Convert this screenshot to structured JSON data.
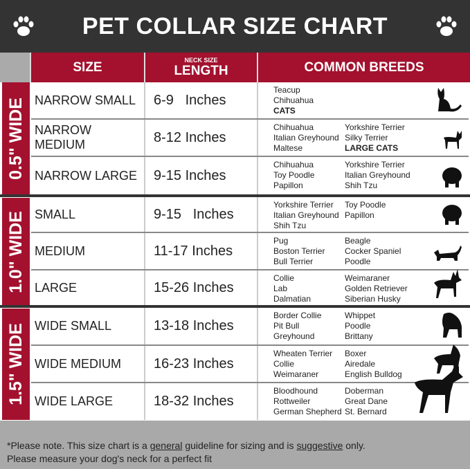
{
  "title": "PET COLLAR SIZE CHART",
  "colors": {
    "red": "#a3112e",
    "dark": "#333333",
    "footer": "#a9a9a9"
  },
  "headers": {
    "size": "SIZE",
    "neck_small": "NECK SIZE",
    "length": "LENGTH",
    "breeds": "COMMON BREEDS"
  },
  "groups": [
    "0.5\" WIDE",
    "1.0\" WIDE",
    "1.5\" WIDE"
  ],
  "rows": [
    {
      "size": "NARROW SMALL",
      "length": "6-9   Inches",
      "col1": [
        "Teacup",
        "Chihuahua"
      ],
      "col1_bold": "CATS",
      "col2": [],
      "col2_bold": "",
      "icon": "cat-icon"
    },
    {
      "size": "NARROW MEDIUM",
      "length": "8-12 Inches",
      "col1": [
        "Chihuahua",
        "Italian Greyhound",
        "Maltese"
      ],
      "col2": [
        "Yorkshire Terrier",
        "Silky Terrier"
      ],
      "col2_bold": "LARGE CATS",
      "icon": "chihuahua-icon"
    },
    {
      "size": "NARROW LARGE",
      "length": "9-15 Inches",
      "col1": [
        "Chihuahua",
        "Toy Poodle",
        "Papillon"
      ],
      "col2": [
        "Yorkshire Terrier",
        "Italian Greyhound",
        "Shih Tzu"
      ],
      "icon": "fluffy-dog-icon"
    },
    {
      "size": "SMALL",
      "length": "9-15   Inches",
      "col1": [
        "Yorkshire Terrier",
        "Italian Greyhound",
        "Shih Tzu"
      ],
      "col2": [
        "Toy Poodle",
        "Papillon"
      ],
      "icon": "fluffy-dog-icon"
    },
    {
      "size": "MEDIUM",
      "length": "11-17 Inches",
      "col1": [
        "Pug",
        "Boston Terrier",
        "Bull Terrier"
      ],
      "col2": [
        "Beagle",
        "Cocker Spaniel",
        "Poodle"
      ],
      "icon": "dachshund-icon"
    },
    {
      "size": "LARGE",
      "length": "15-26 Inches",
      "col1": [
        "Collie",
        "Lab",
        "Dalmatian"
      ],
      "col2": [
        "Weimaraner",
        "Golden Retriever",
        "Siberian Husky"
      ],
      "icon": "shepherd-dog-icon"
    },
    {
      "size": "WIDE SMALL",
      "length": "13-18 Inches",
      "col1": [
        "Border Collie",
        "Pit Bull",
        "Greyhound"
      ],
      "col2": [
        "Whippet",
        "Poodle",
        "Brittany"
      ],
      "icon": "bulldog-icon"
    },
    {
      "size": "WIDE MEDIUM",
      "length": "16-23 Inches",
      "col1": [
        "Wheaten Terrier",
        "Collie",
        "Weimaraner"
      ],
      "col2": [
        "Boxer",
        "Airedale",
        "English Bulldog"
      ],
      "icon": "pitbull-icon"
    },
    {
      "size": "WIDE LARGE",
      "length": "18-32 Inches",
      "col1": [
        "Bloodhound",
        "Rottweiler",
        "German Shepherd"
      ],
      "col2": [
        "Doberman",
        "Great Dane",
        "St. Bernard"
      ],
      "icon": "doberman-icon"
    }
  ],
  "footer": {
    "p1": "*Please note. This size chart is a ",
    "u1": "general",
    "p2": " guideline for sizing and is ",
    "u2": "suggestive",
    "p3": " only.",
    "line2": "Please measure your dog's neck for a perfect fit"
  }
}
